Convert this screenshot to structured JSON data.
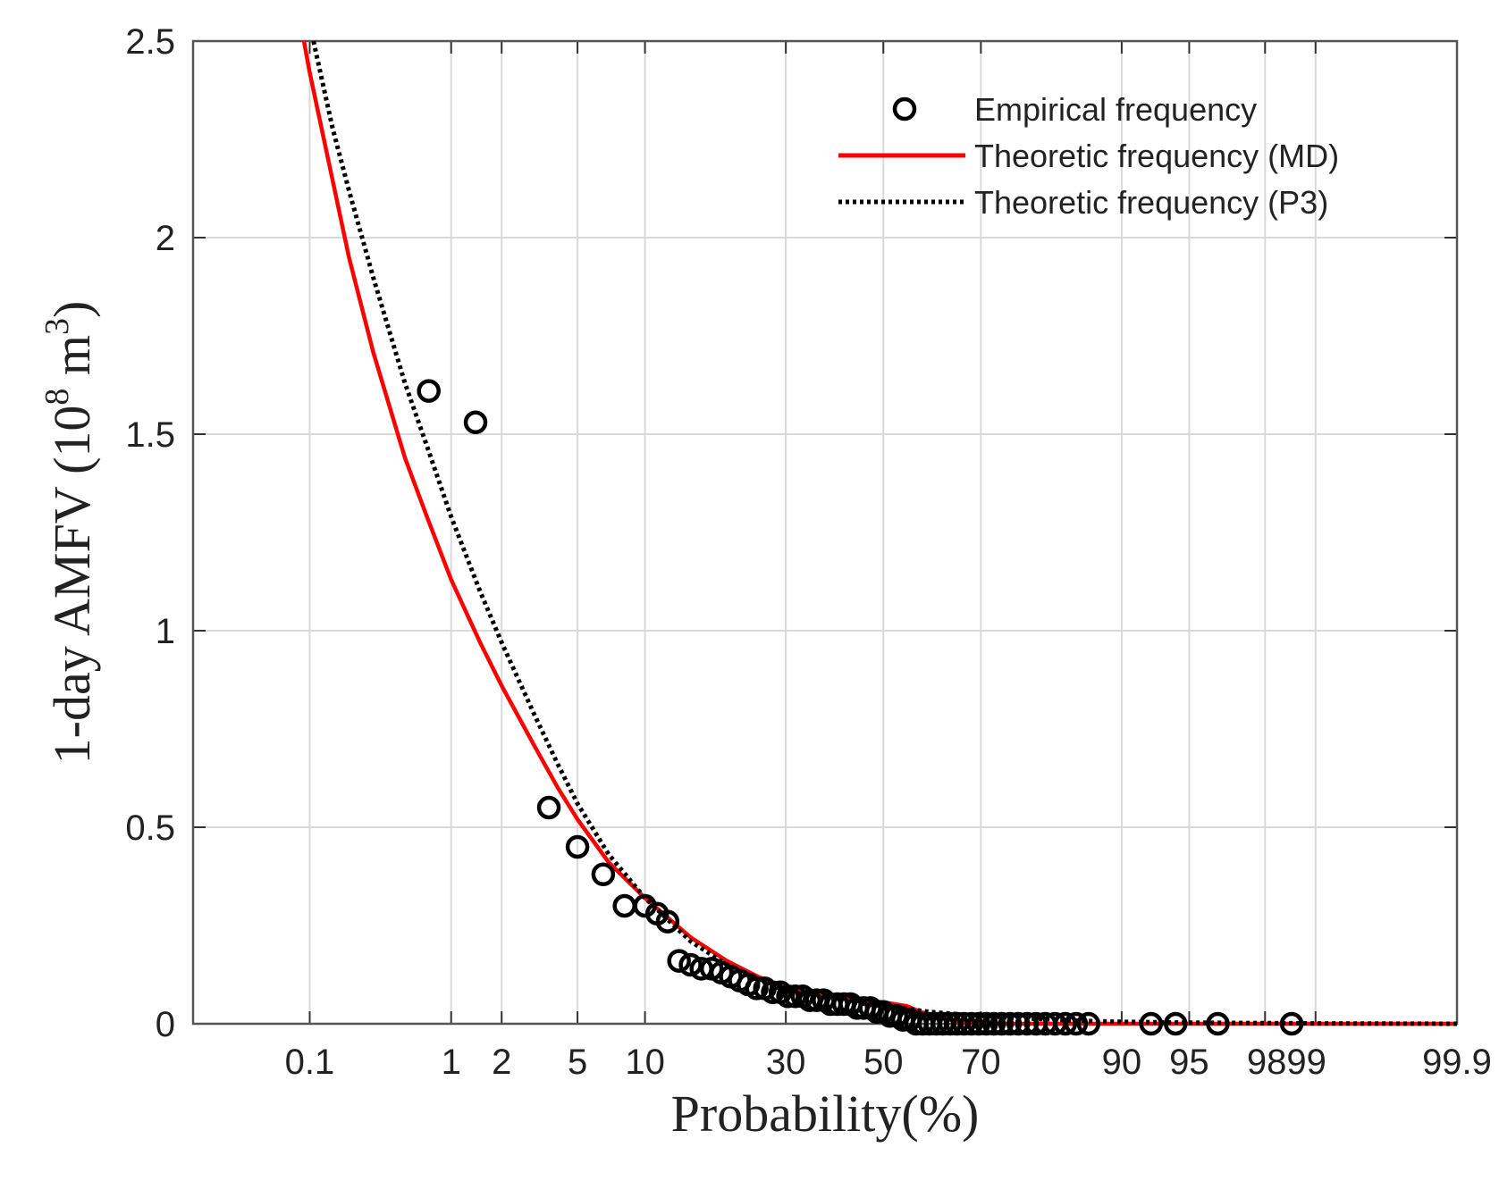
{
  "chart_data": {
    "type": "scatter",
    "title": "",
    "xlabel": "Probability(%)",
    "ylabel": {
      "prefix": "1-day AMFV (10",
      "exp": "8",
      "unit": " m",
      "unit_exp": "3",
      "suffix": ")"
    },
    "x_scale": "probability",
    "xlim": [
      0.01,
      99.9
    ],
    "ylim": [
      0,
      2.5
    ],
    "x_ticks": [
      0.1,
      1,
      2,
      5,
      10,
      30,
      50,
      70,
      90,
      95,
      98,
      99,
      99.9
    ],
    "x_tick_labels": [
      {
        "value": 0.1,
        "label": "0.1"
      },
      {
        "value": 1,
        "label": "1"
      },
      {
        "value": 2,
        "label": "2"
      },
      {
        "value": 5,
        "label": "5"
      },
      {
        "value": 10,
        "label": "10"
      },
      {
        "value": 30,
        "label": "30"
      },
      {
        "value": 50,
        "label": "50"
      },
      {
        "value": 70,
        "label": "70"
      },
      {
        "value": 90,
        "label": "90"
      },
      {
        "value": 95,
        "label": "95"
      },
      {
        "value": 98.5,
        "label": "9899"
      },
      {
        "value": 99.9,
        "label": "99.9"
      }
    ],
    "y_ticks": [
      0,
      0.5,
      1,
      1.5,
      2,
      2.5
    ],
    "y_tick_labels": [
      "0",
      "0.5",
      "1",
      "1.5",
      "2",
      "2.5"
    ],
    "grid": true,
    "legend": {
      "position": "top-right",
      "entries": [
        {
          "label": "Empirical frequency",
          "style": "circle",
          "color": "#000000"
        },
        {
          "label": "Theoretic frequency (MD)",
          "style": "solid",
          "color": "#ff0000"
        },
        {
          "label": "Theoretic frequency (P3)",
          "style": "dotted",
          "color": "#000000"
        }
      ]
    },
    "series": [
      {
        "name": "Empirical frequency",
        "type": "scatter",
        "color": "#000000",
        "points": [
          [
            0.72,
            1.61
          ],
          [
            1.41,
            1.53
          ],
          [
            3.6,
            0.55
          ],
          [
            5.0,
            0.45
          ],
          [
            6.6,
            0.38
          ],
          [
            8.2,
            0.3
          ],
          [
            10.0,
            0.3
          ],
          [
            11.2,
            0.28
          ],
          [
            12.3,
            0.26
          ],
          [
            13.6,
            0.16
          ],
          [
            15.0,
            0.15
          ],
          [
            16.4,
            0.14
          ],
          [
            17.8,
            0.14
          ],
          [
            19.2,
            0.13
          ],
          [
            20.6,
            0.12
          ],
          [
            22.0,
            0.11
          ],
          [
            23.4,
            0.1
          ],
          [
            24.8,
            0.09
          ],
          [
            26.2,
            0.09
          ],
          [
            27.6,
            0.08
          ],
          [
            29.0,
            0.08
          ],
          [
            30.4,
            0.07
          ],
          [
            31.8,
            0.07
          ],
          [
            33.2,
            0.07
          ],
          [
            34.6,
            0.06
          ],
          [
            36.0,
            0.06
          ],
          [
            37.4,
            0.06
          ],
          [
            38.8,
            0.05
          ],
          [
            40.2,
            0.05
          ],
          [
            41.6,
            0.05
          ],
          [
            43.0,
            0.05
          ],
          [
            44.4,
            0.04
          ],
          [
            45.8,
            0.04
          ],
          [
            47.2,
            0.04
          ],
          [
            48.6,
            0.03
          ],
          [
            50.0,
            0.03
          ],
          [
            51.4,
            0.02
          ],
          [
            52.8,
            0.02
          ],
          [
            54.2,
            0.01
          ],
          [
            55.6,
            0.01
          ],
          [
            57.0,
            0.0
          ],
          [
            58.4,
            0.0
          ],
          [
            59.8,
            0.0
          ],
          [
            61.2,
            0.0
          ],
          [
            62.6,
            0.0
          ],
          [
            64.0,
            0.0
          ],
          [
            65.4,
            0.0
          ],
          [
            66.8,
            0.0
          ],
          [
            68.2,
            0.0
          ],
          [
            69.6,
            0.0
          ],
          [
            71.0,
            0.0
          ],
          [
            72.4,
            0.0
          ],
          [
            73.8,
            0.0
          ],
          [
            75.2,
            0.0
          ],
          [
            76.6,
            0.0
          ],
          [
            78.0,
            0.0
          ],
          [
            79.4,
            0.0
          ],
          [
            80.8,
            0.0
          ],
          [
            82.2,
            0.0
          ],
          [
            83.6,
            0.0
          ],
          [
            85.0,
            0.0
          ],
          [
            86.5,
            0.0
          ],
          [
            92.5,
            0.0
          ],
          [
            94.2,
            0.0
          ],
          [
            96.4,
            0.0
          ],
          [
            98.6,
            0.0
          ]
        ]
      },
      {
        "name": "Theoretic frequency (MD)",
        "type": "line",
        "style": "solid",
        "color": "#ff0000",
        "points": [
          [
            0.09,
            2.5
          ],
          [
            0.1,
            2.42
          ],
          [
            0.2,
            1.95
          ],
          [
            0.3,
            1.71
          ],
          [
            0.5,
            1.44
          ],
          [
            0.7,
            1.29
          ],
          [
            1,
            1.13
          ],
          [
            1.5,
            0.97
          ],
          [
            2,
            0.86
          ],
          [
            3,
            0.71
          ],
          [
            4,
            0.6
          ],
          [
            5,
            0.52
          ],
          [
            7,
            0.41
          ],
          [
            10,
            0.32
          ],
          [
            15,
            0.22
          ],
          [
            20,
            0.16
          ],
          [
            25,
            0.12
          ],
          [
            30,
            0.09
          ],
          [
            35,
            0.075
          ],
          [
            40,
            0.065
          ],
          [
            45,
            0.06
          ],
          [
            50,
            0.055
          ],
          [
            55,
            0.045
          ],
          [
            58,
            0.03
          ],
          [
            62,
            0.015
          ],
          [
            66,
            0.005
          ],
          [
            70,
            0.0
          ],
          [
            80,
            0.0
          ],
          [
            90,
            0.0
          ],
          [
            99.9,
            0.0
          ]
        ]
      },
      {
        "name": "Theoretic frequency (P3)",
        "type": "line",
        "style": "dotted",
        "color": "#000000",
        "points": [
          [
            0.107,
            2.5
          ],
          [
            0.15,
            2.28
          ],
          [
            0.2,
            2.12
          ],
          [
            0.3,
            1.9
          ],
          [
            0.5,
            1.63
          ],
          [
            0.7,
            1.47
          ],
          [
            1,
            1.29
          ],
          [
            1.5,
            1.1
          ],
          [
            2,
            0.97
          ],
          [
            3,
            0.79
          ],
          [
            4,
            0.66
          ],
          [
            5,
            0.56
          ],
          [
            7,
            0.43
          ],
          [
            10,
            0.32
          ],
          [
            15,
            0.21
          ],
          [
            20,
            0.15
          ],
          [
            25,
            0.11
          ],
          [
            30,
            0.085
          ],
          [
            35,
            0.07
          ],
          [
            40,
            0.06
          ],
          [
            45,
            0.052
          ],
          [
            50,
            0.045
          ],
          [
            55,
            0.038
          ],
          [
            60,
            0.03
          ],
          [
            65,
            0.025
          ],
          [
            70,
            0.02
          ],
          [
            75,
            0.016
          ],
          [
            80,
            0.012
          ],
          [
            85,
            0.008
          ],
          [
            90,
            0.005
          ],
          [
            95,
            0.003
          ],
          [
            99,
            0.001
          ],
          [
            99.9,
            0.0
          ]
        ]
      }
    ]
  }
}
